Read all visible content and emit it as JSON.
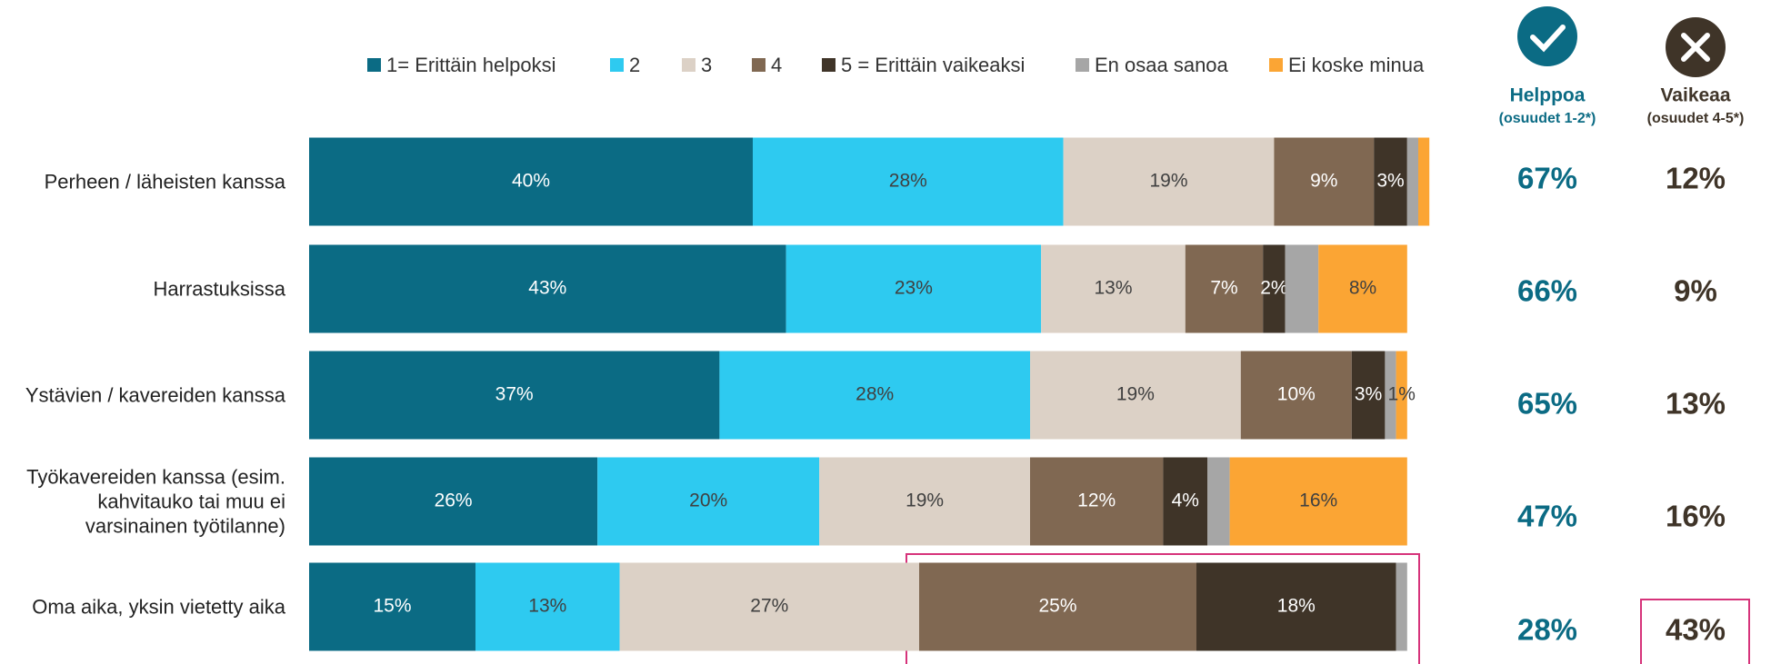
{
  "chart_data": {
    "type": "stacked-bar-horizontal",
    "xlim": [
      0,
      100
    ],
    "categories": [
      "Perheen / läheisten kanssa",
      "Harrastuksissa",
      "Ystävien / kavereiden kanssa",
      "Työkavereiden kanssa (esim. kahvitauko tai muu ei varsinainen työtilanne)",
      "Oma aika, yksin vietetty aika"
    ],
    "series": [
      {
        "name": "1= Erittäin helpoksi",
        "color": "#0b6b84",
        "values": [
          40,
          43,
          37,
          26,
          15
        ],
        "value_labels": [
          "40%",
          "43%",
          "37%",
          "26%",
          "15%"
        ]
      },
      {
        "name": "2",
        "color": "#2ecaf0",
        "values": [
          28,
          23,
          28,
          20,
          13
        ],
        "value_labels": [
          "28%",
          "23%",
          "28%",
          "20%",
          "13%"
        ]
      },
      {
        "name": "3",
        "color": "#dcd1c6",
        "values": [
          19,
          13,
          19,
          19,
          27
        ],
        "value_labels": [
          "19%",
          "13%",
          "19%",
          "19%",
          "27%"
        ]
      },
      {
        "name": "4",
        "color": "#806852",
        "values": [
          9,
          7,
          10,
          12,
          25
        ],
        "value_labels": [
          "9%",
          "7%",
          "10%",
          "12%",
          "25%"
        ]
      },
      {
        "name": "5 = Erittäin vaikeaksi",
        "color": "#3f3428",
        "values": [
          3,
          2,
          3,
          4,
          18
        ],
        "value_labels": [
          "3%",
          "2%",
          "3%",
          "4%",
          "18%"
        ]
      },
      {
        "name": "En osaa sanoa",
        "color": "#a6a6a6",
        "values": [
          1,
          3,
          1,
          2,
          1
        ],
        "value_labels": [
          null,
          null,
          null,
          null,
          null
        ]
      },
      {
        "name": "Ei koske minua",
        "color": "#fba534",
        "values": [
          1,
          8,
          1,
          16,
          0
        ],
        "value_labels": [
          null,
          "8%",
          "1%",
          "16%",
          null
        ]
      }
    ],
    "summary": [
      {
        "title": "Helppoa",
        "subtitle": "(osuudet 1-2*)",
        "color": "#0b6b84",
        "values": [
          67,
          66,
          65,
          47,
          28
        ],
        "value_labels": [
          "67%",
          "66%",
          "65%",
          "47%",
          "28%"
        ]
      },
      {
        "title": "Vaikeaa",
        "subtitle": "(osuudet 4-5*)",
        "color": "#3f3428",
        "values": [
          12,
          9,
          13,
          16,
          43
        ],
        "value_labels": [
          "12%",
          "9%",
          "13%",
          "16%",
          "43%"
        ]
      }
    ]
  }
}
